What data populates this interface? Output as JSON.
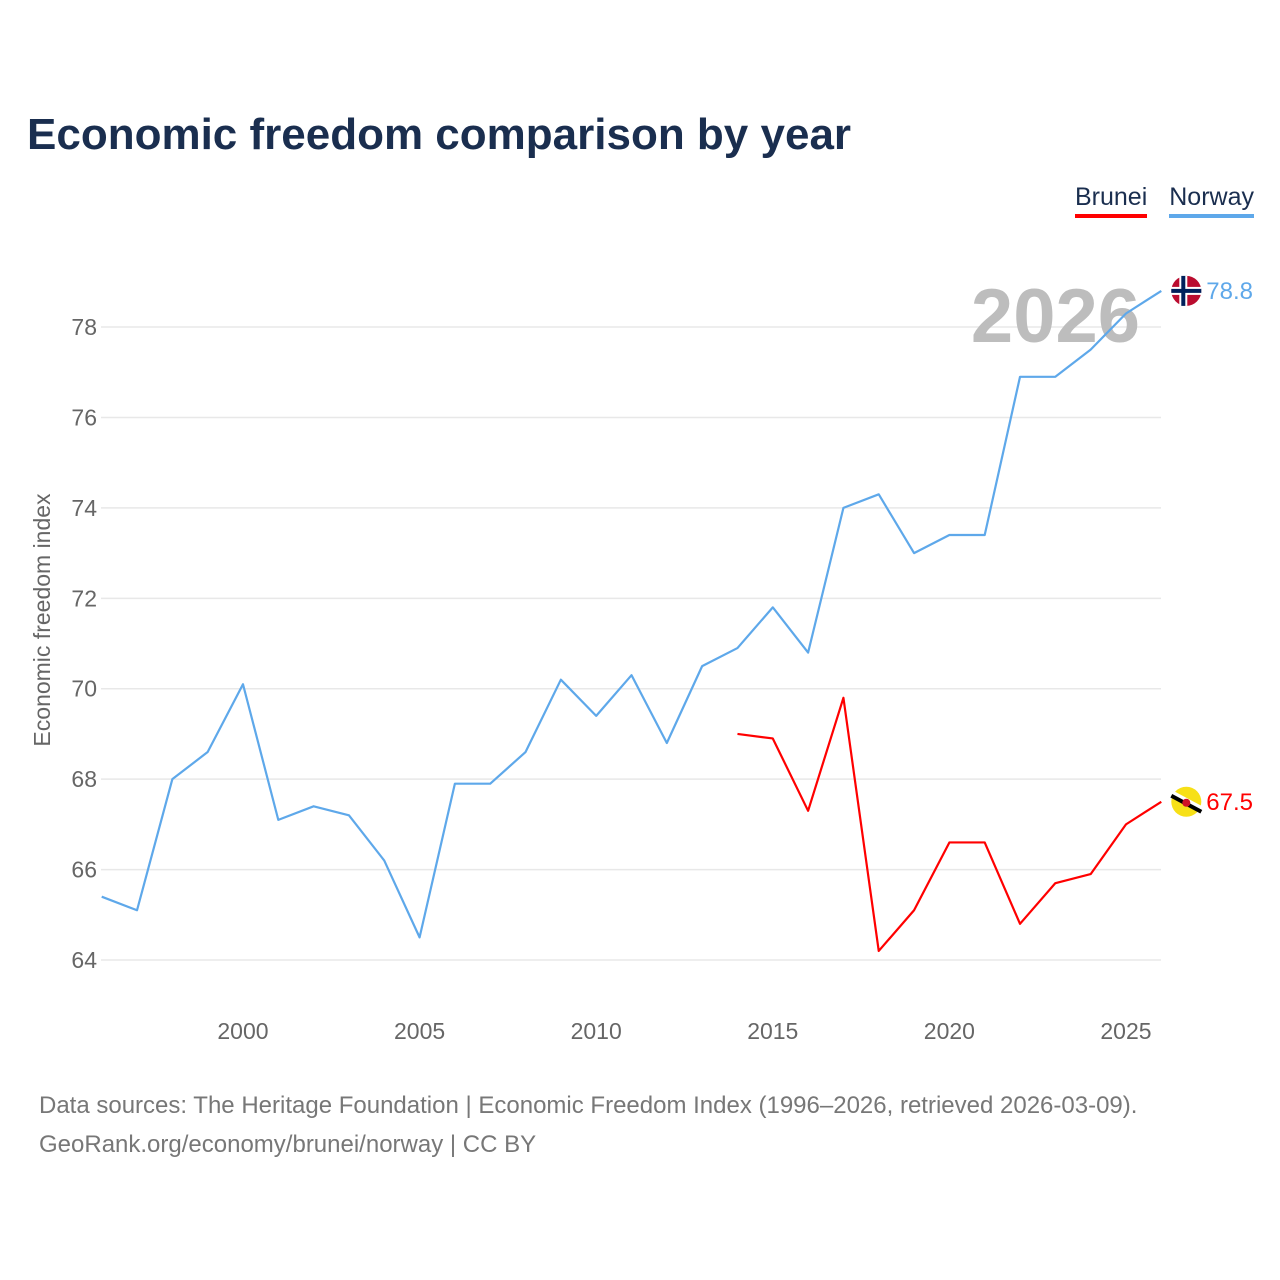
{
  "chart_data": {
    "type": "line",
    "title": "Economic freedom comparison by year",
    "xlabel": "",
    "ylabel": "Economic freedom index",
    "xlim": [
      1996,
      2026
    ],
    "ylim": [
      63,
      79.2
    ],
    "xticks": [
      2000,
      2005,
      2010,
      2015,
      2020,
      2025
    ],
    "yticks": [
      64,
      66,
      68,
      70,
      72,
      74,
      76,
      78
    ],
    "grid": true,
    "legend_position": "top-right",
    "watermark_year": "2026",
    "series": [
      {
        "name": "Brunei",
        "color": "#ff0000",
        "end_label": "67.5",
        "flag": "brunei-flag",
        "x": [
          2014,
          2015,
          2016,
          2017,
          2018,
          2019,
          2020,
          2021,
          2022,
          2023,
          2024,
          2025,
          2026
        ],
        "values": [
          69.0,
          68.9,
          67.3,
          69.8,
          64.2,
          65.1,
          66.6,
          66.6,
          64.8,
          65.7,
          65.9,
          67.0,
          67.5
        ]
      },
      {
        "name": "Norway",
        "color": "#5ea8ea",
        "end_label": "78.8",
        "flag": "norway-flag",
        "x": [
          1996,
          1997,
          1998,
          1999,
          2000,
          2001,
          2002,
          2003,
          2004,
          2005,
          2006,
          2007,
          2008,
          2009,
          2010,
          2011,
          2012,
          2013,
          2014,
          2015,
          2016,
          2017,
          2018,
          2019,
          2020,
          2021,
          2022,
          2023,
          2024,
          2025,
          2026
        ],
        "values": [
          65.4,
          65.1,
          68.0,
          68.6,
          70.1,
          67.1,
          67.4,
          67.2,
          66.2,
          64.5,
          67.9,
          67.9,
          68.6,
          70.2,
          69.4,
          70.3,
          68.8,
          70.5,
          70.9,
          71.8,
          70.8,
          74.0,
          74.3,
          73.0,
          73.4,
          73.4,
          76.9,
          76.9,
          77.5,
          78.3,
          78.8
        ]
      }
    ]
  },
  "footer": {
    "line1": "Data sources: The Heritage Foundation | Economic Freedom Index (1996–2026, retrieved 2026-03-09).",
    "line2": "GeoRank.org/economy/brunei/norway | CC BY"
  }
}
